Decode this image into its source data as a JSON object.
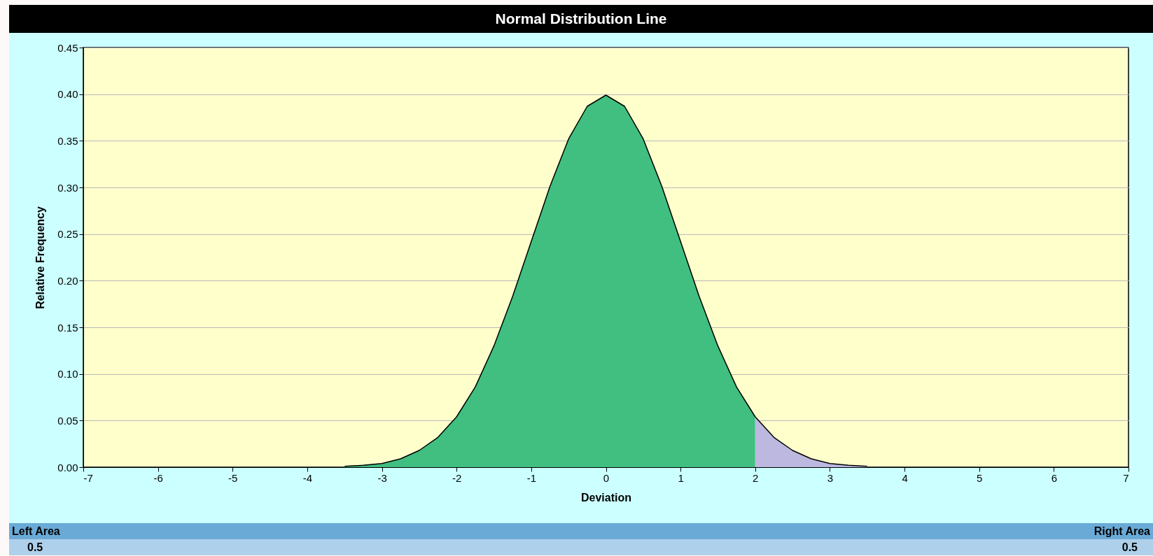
{
  "chart_data": {
    "type": "area",
    "title": "Normal Distribution Line",
    "xlabel": "Deviation",
    "ylabel": "Relative Frequency",
    "series": [
      {
        "color": "#40bf80",
        "x": [
          -3.5,
          -3.25,
          -3,
          -2.75,
          -2.5,
          -2.25,
          -2,
          -1.75,
          -1.5,
          -1.25,
          -1,
          -0.75,
          -0.5,
          -0.25,
          0,
          0.25,
          0.5,
          0.75,
          1,
          1.25,
          1.5,
          1.75,
          2
        ],
        "values": [
          0.001,
          0.002,
          0.004,
          0.009,
          0.018,
          0.032,
          0.054,
          0.086,
          0.13,
          0.183,
          0.242,
          0.301,
          0.352,
          0.387,
          0.399,
          0.387,
          0.352,
          0.301,
          0.242,
          0.183,
          0.13,
          0.086,
          0.054
        ]
      },
      {
        "color": "#bcb8e0",
        "x": [
          2,
          2.25,
          2.5,
          2.75,
          3,
          3.25,
          3.5
        ],
        "values": [
          0.054,
          0.032,
          0.018,
          0.009,
          0.004,
          0.002,
          0.001
        ]
      }
    ],
    "xlim": [
      -7,
      7
    ],
    "xticks": [
      -7,
      -6,
      -5,
      -4,
      -3,
      -2,
      -1,
      0,
      1,
      2,
      3,
      4,
      5,
      6,
      7
    ],
    "ylim": [
      0,
      0.45
    ],
    "yticks": [
      {
        "value": 0,
        "label": "0.00"
      },
      {
        "value": 0.05,
        "label": "0.05"
      },
      {
        "value": 0.1,
        "label": "0.10"
      },
      {
        "value": 0.15,
        "label": "0.15"
      },
      {
        "value": 0.2,
        "label": "0.20"
      },
      {
        "value": 0.25,
        "label": "0.25"
      },
      {
        "value": 0.3,
        "label": "0.30"
      },
      {
        "value": 0.35,
        "label": "0.35"
      },
      {
        "value": 0.4,
        "label": "0.40"
      },
      {
        "value": 0.45,
        "label": "0.45"
      }
    ],
    "grid": "y",
    "annotations": [
      "Left Area",
      "0.5",
      "Right Area",
      "0.5"
    ]
  }
}
